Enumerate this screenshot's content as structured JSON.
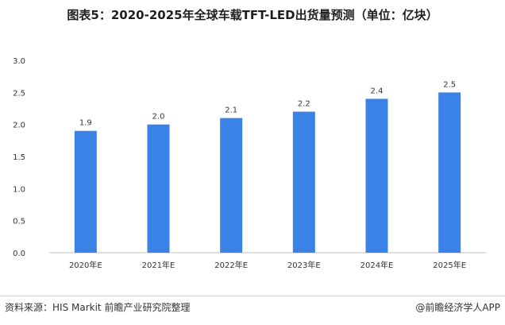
{
  "header": {
    "title": "图表5：2020-2025年全球车载TFT-LED出货量预测（单位：亿块）"
  },
  "footer": {
    "source": "资料来源：HIS Markit 前瞻产业研究院整理",
    "brand": "@前瞻经济学人APP"
  },
  "colors": {
    "bar": "#3B82E6",
    "axis": "#bfbfbf"
  },
  "chart_data": {
    "type": "bar",
    "title": "图表5：2020-2025年全球车载TFT-LED出货量预测（单位：亿块）",
    "categories": [
      "2020年E",
      "2021年E",
      "2022年E",
      "2023年E",
      "2024年E",
      "2025年E"
    ],
    "values": [
      1.9,
      2.0,
      2.1,
      2.2,
      2.4,
      2.5
    ],
    "data_labels": [
      "1.9",
      "2.0",
      "2.1",
      "2.2",
      "2.4",
      "2.5"
    ],
    "ylim": [
      0,
      3.0
    ],
    "yticks": [
      "0.0",
      "0.5",
      "1.0",
      "1.5",
      "2.0",
      "2.5",
      "3.0"
    ],
    "xlabel": "",
    "ylabel": "",
    "grid": false,
    "legend": "none"
  }
}
